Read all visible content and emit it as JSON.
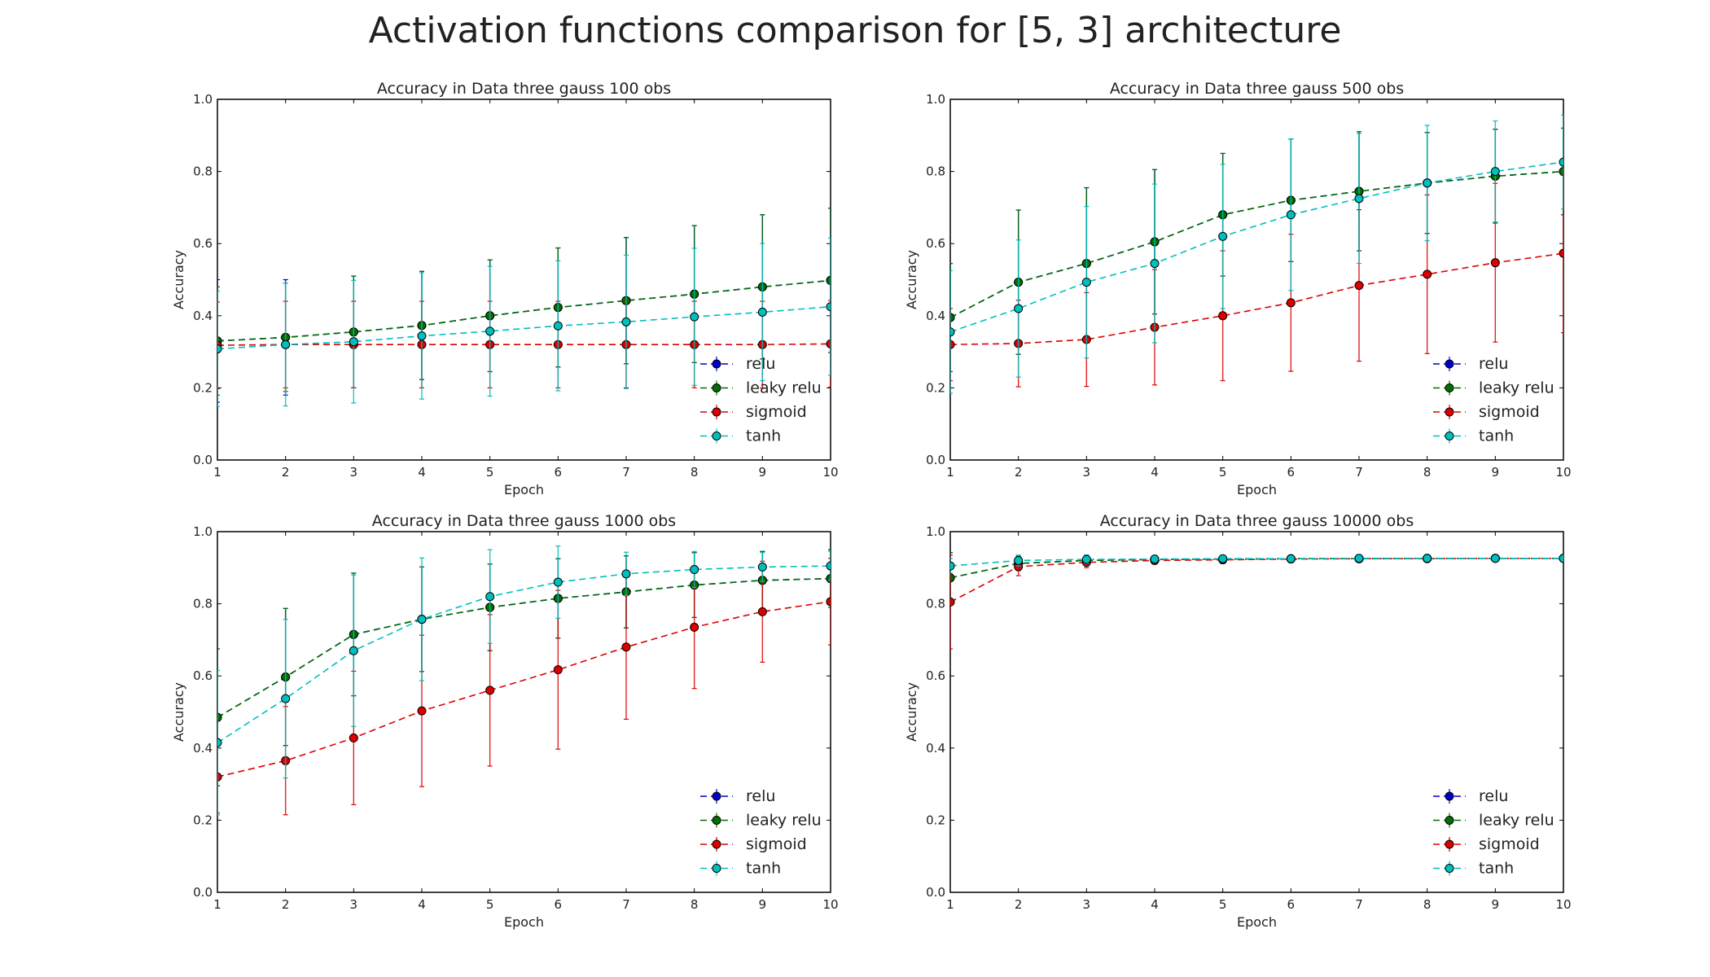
{
  "figure_title": "Activation functions comparison for [5, 3] architecture",
  "colors": {
    "relu": "#0000cc",
    "leaky_relu": "#007000",
    "sigmoid": "#dd0000",
    "tanh": "#00bfbf",
    "axes": "#000000"
  },
  "chart_data": [
    {
      "type": "line",
      "title": "Accuracy in Data three gauss 100 obs",
      "xlabel": "Epoch",
      "ylabel": "Accuracy",
      "xlim": [
        1,
        10
      ],
      "ylim": [
        0.0,
        1.0
      ],
      "xticks": [
        1,
        2,
        3,
        4,
        5,
        6,
        7,
        8,
        9,
        10
      ],
      "yticks": [
        "0.0",
        "0.2",
        "0.4",
        "0.6",
        "0.8",
        "1.0"
      ],
      "grid": false,
      "legend": "lower-right",
      "x": [
        1,
        2,
        3,
        4,
        5,
        6,
        7,
        8,
        9,
        10
      ],
      "series": [
        {
          "name": "relu",
          "color": "#0000cc",
          "values": [
            0.33,
            0.34,
            0.355,
            0.373,
            0.4,
            0.423,
            0.442,
            0.46,
            0.48,
            0.498
          ],
          "err": [
            0.17,
            0.16,
            0.155,
            0.15,
            0.155,
            0.165,
            0.175,
            0.19,
            0.2,
            0.2
          ]
        },
        {
          "name": "leaky relu",
          "color": "#007000",
          "values": [
            0.33,
            0.34,
            0.355,
            0.373,
            0.4,
            0.423,
            0.442,
            0.46,
            0.48,
            0.498
          ],
          "err": [
            0.15,
            0.15,
            0.155,
            0.15,
            0.155,
            0.165,
            0.175,
            0.19,
            0.2,
            0.2
          ]
        },
        {
          "name": "sigmoid",
          "color": "#dd0000",
          "values": [
            0.318,
            0.32,
            0.32,
            0.32,
            0.32,
            0.32,
            0.32,
            0.32,
            0.32,
            0.322
          ],
          "err": [
            0.12,
            0.12,
            0.12,
            0.12,
            0.12,
            0.12,
            0.12,
            0.12,
            0.12,
            0.12
          ]
        },
        {
          "name": "tanh",
          "color": "#00bfbf",
          "values": [
            0.308,
            0.32,
            0.328,
            0.344,
            0.357,
            0.372,
            0.383,
            0.397,
            0.41,
            0.425
          ],
          "err": [
            0.16,
            0.17,
            0.17,
            0.175,
            0.18,
            0.18,
            0.185,
            0.19,
            0.19,
            0.19
          ]
        }
      ]
    },
    {
      "type": "line",
      "title": "Accuracy in Data three gauss 500 obs",
      "xlabel": "Epoch",
      "ylabel": "Accuracy",
      "xlim": [
        1,
        10
      ],
      "ylim": [
        0.0,
        1.0
      ],
      "xticks": [
        1,
        2,
        3,
        4,
        5,
        6,
        7,
        8,
        9,
        10
      ],
      "yticks": [
        "0.0",
        "0.2",
        "0.4",
        "0.6",
        "0.8",
        "1.0"
      ],
      "grid": false,
      "legend": "lower-right",
      "x": [
        1,
        2,
        3,
        4,
        5,
        6,
        7,
        8,
        9,
        10
      ],
      "series": [
        {
          "name": "relu",
          "color": "#0000cc",
          "values": [
            0.395,
            0.493,
            0.545,
            0.605,
            0.68,
            0.72,
            0.745,
            0.768,
            0.787,
            0.8
          ],
          "err": [
            0.15,
            0.2,
            0.21,
            0.2,
            0.17,
            0.17,
            0.165,
            0.14,
            0.13,
            0.12
          ]
        },
        {
          "name": "leaky relu",
          "color": "#007000",
          "values": [
            0.395,
            0.493,
            0.545,
            0.605,
            0.68,
            0.72,
            0.745,
            0.768,
            0.787,
            0.8
          ],
          "err": [
            0.15,
            0.2,
            0.21,
            0.2,
            0.17,
            0.17,
            0.165,
            0.14,
            0.13,
            0.12
          ]
        },
        {
          "name": "sigmoid",
          "color": "#dd0000",
          "values": [
            0.32,
            0.323,
            0.334,
            0.368,
            0.4,
            0.436,
            0.484,
            0.515,
            0.547,
            0.573
          ],
          "err": [
            0.1,
            0.12,
            0.13,
            0.16,
            0.18,
            0.19,
            0.21,
            0.22,
            0.22,
            0.22
          ]
        },
        {
          "name": "tanh",
          "color": "#00bfbf",
          "values": [
            0.355,
            0.42,
            0.493,
            0.545,
            0.62,
            0.68,
            0.725,
            0.768,
            0.8,
            0.826
          ],
          "err": [
            0.17,
            0.19,
            0.21,
            0.22,
            0.2,
            0.21,
            0.18,
            0.16,
            0.14,
            0.13
          ]
        }
      ]
    },
    {
      "type": "line",
      "title": "Accuracy in Data three gauss 1000 obs",
      "xlabel": "Epoch",
      "ylabel": "Accuracy",
      "xlim": [
        1,
        10
      ],
      "ylim": [
        0.0,
        1.0
      ],
      "xticks": [
        1,
        2,
        3,
        4,
        5,
        6,
        7,
        8,
        9,
        10
      ],
      "yticks": [
        "0.0",
        "0.2",
        "0.4",
        "0.6",
        "0.8",
        "1.0"
      ],
      "grid": false,
      "legend": "lower-right",
      "x": [
        1,
        2,
        3,
        4,
        5,
        6,
        7,
        8,
        9,
        10
      ],
      "series": [
        {
          "name": "relu",
          "color": "#0000cc",
          "values": [
            0.485,
            0.597,
            0.715,
            0.757,
            0.79,
            0.815,
            0.833,
            0.852,
            0.865,
            0.87
          ],
          "err": [
            0.19,
            0.19,
            0.17,
            0.145,
            0.12,
            0.11,
            0.1,
            0.09,
            0.08,
            0.08
          ]
        },
        {
          "name": "leaky relu",
          "color": "#007000",
          "values": [
            0.485,
            0.597,
            0.715,
            0.757,
            0.79,
            0.815,
            0.833,
            0.852,
            0.865,
            0.87
          ],
          "err": [
            0.19,
            0.19,
            0.17,
            0.145,
            0.12,
            0.11,
            0.1,
            0.09,
            0.08,
            0.08
          ]
        },
        {
          "name": "sigmoid",
          "color": "#dd0000",
          "values": [
            0.32,
            0.365,
            0.428,
            0.503,
            0.56,
            0.617,
            0.68,
            0.735,
            0.778,
            0.806
          ],
          "err": [
            0.1,
            0.15,
            0.185,
            0.21,
            0.21,
            0.22,
            0.2,
            0.17,
            0.14,
            0.12
          ]
        },
        {
          "name": "tanh",
          "color": "#00bfbf",
          "values": [
            0.415,
            0.537,
            0.67,
            0.757,
            0.82,
            0.86,
            0.883,
            0.895,
            0.902,
            0.905
          ],
          "err": [
            0.2,
            0.22,
            0.21,
            0.17,
            0.13,
            0.1,
            0.06,
            0.05,
            0.04,
            0.04
          ]
        }
      ]
    },
    {
      "type": "line",
      "title": "Accuracy in Data three gauss 10000 obs",
      "xlabel": "Epoch",
      "ylabel": "Accuracy",
      "xlim": [
        1,
        10
      ],
      "ylim": [
        0.0,
        1.0
      ],
      "xticks": [
        1,
        2,
        3,
        4,
        5,
        6,
        7,
        8,
        9,
        10
      ],
      "yticks": [
        "0.0",
        "0.2",
        "0.4",
        "0.6",
        "0.8",
        "1.0"
      ],
      "grid": false,
      "legend": "lower-right",
      "x": [
        1,
        2,
        3,
        4,
        5,
        6,
        7,
        8,
        9,
        10
      ],
      "series": [
        {
          "name": "relu",
          "color": "#0000cc",
          "values": [
            0.872,
            0.912,
            0.92,
            0.923,
            0.924,
            0.925,
            0.925,
            0.926,
            0.926,
            0.926
          ],
          "err": [
            0.07,
            0.02,
            0.015,
            0.01,
            0.01,
            0.008,
            0.008,
            0.007,
            0.007,
            0.007
          ]
        },
        {
          "name": "leaky relu",
          "color": "#007000",
          "values": [
            0.872,
            0.912,
            0.92,
            0.923,
            0.924,
            0.925,
            0.925,
            0.926,
            0.926,
            0.926
          ],
          "err": [
            0.07,
            0.02,
            0.015,
            0.01,
            0.01,
            0.008,
            0.008,
            0.007,
            0.007,
            0.007
          ]
        },
        {
          "name": "sigmoid",
          "color": "#dd0000",
          "values": [
            0.805,
            0.903,
            0.915,
            0.92,
            0.922,
            0.924,
            0.925,
            0.925,
            0.926,
            0.926
          ],
          "err": [
            0.13,
            0.025,
            0.015,
            0.01,
            0.01,
            0.008,
            0.008,
            0.007,
            0.007,
            0.007
          ]
        },
        {
          "name": "tanh",
          "color": "#00bfbf",
          "values": [
            0.905,
            0.92,
            0.923,
            0.924,
            0.925,
            0.925,
            0.926,
            0.926,
            0.926,
            0.926
          ],
          "err": [
            0.02,
            0.015,
            0.012,
            0.01,
            0.008,
            0.008,
            0.007,
            0.007,
            0.007,
            0.007
          ]
        }
      ]
    }
  ]
}
